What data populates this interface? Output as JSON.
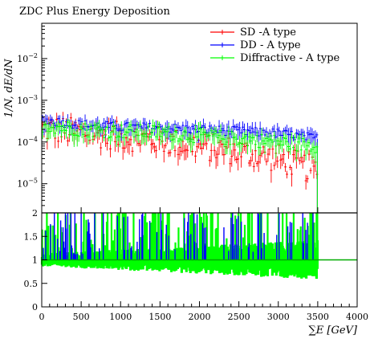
{
  "chart_data": {
    "type": "scatter",
    "title": "ZDC Plus Energy Deposition",
    "xlabel": "∑E [GeV]",
    "ylabel": "1/N, dE/dN",
    "xlim": [
      0,
      4000
    ],
    "x_ticks": [
      0,
      500,
      1000,
      1500,
      2000,
      2500,
      3000,
      3500,
      4000
    ],
    "main_panel": {
      "ylog": true,
      "ylim": [
        2e-06,
        0.07
      ],
      "y_tick_labels": [
        "10^-5",
        "10^-4",
        "10^-3",
        "10^-2"
      ],
      "legend_position": "top-right",
      "series": [
        {
          "name": "SD -A type",
          "color": "#ff0000",
          "x_range": [
            0,
            3500
          ],
          "level_points": [
            [
              0,
              0.00021
            ],
            [
              500,
              0.00017
            ],
            [
              1000,
              0.00014
            ],
            [
              1500,
              0.00011
            ],
            [
              2000,
              8e-05
            ],
            [
              2500,
              6e-05
            ],
            [
              3000,
              4e-05
            ],
            [
              3500,
              2e-05
            ]
          ],
          "scatter_factor": 2.2
        },
        {
          "name": "DD - A type",
          "color": "#0000ff",
          "x_range": [
            0,
            3500
          ],
          "level_points": [
            [
              0,
              0.00034
            ],
            [
              500,
              0.00026
            ],
            [
              1000,
              0.00023
            ],
            [
              1500,
              0.00022
            ],
            [
              2000,
              0.0002
            ],
            [
              2500,
              0.00018
            ],
            [
              3000,
              0.00016
            ],
            [
              3500,
              0.00012
            ]
          ],
          "scatter_factor": 1.3
        },
        {
          "name": "Diffractive - A type",
          "color": "#00ff00",
          "x_range": [
            0,
            3500
          ],
          "level_points": [
            [
              0,
              0.00026
            ],
            [
              500,
              0.0002
            ],
            [
              1000,
              0.00018
            ],
            [
              1500,
              0.00017
            ],
            [
              2000,
              0.00014
            ],
            [
              2500,
              0.00012
            ],
            [
              3000,
              0.0001
            ],
            [
              3500,
              8e-05
            ]
          ],
          "scatter_factor": 1.5
        }
      ]
    },
    "ratio_panel": {
      "ylim": [
        0,
        2
      ],
      "y_ticks": [
        0,
        0.5,
        1,
        1.5,
        2
      ],
      "y_tick_labels": [
        "0",
        "0.5",
        "1",
        "1.5",
        "2"
      ],
      "reference_line": 1,
      "reference_color": "#00aa00",
      "band_color": "#00ff00",
      "spike_color": "#0000ff",
      "band_halfwidth_start": 0.1,
      "band_halfwidth_end": 0.3,
      "x_range": [
        0,
        3500
      ]
    }
  }
}
